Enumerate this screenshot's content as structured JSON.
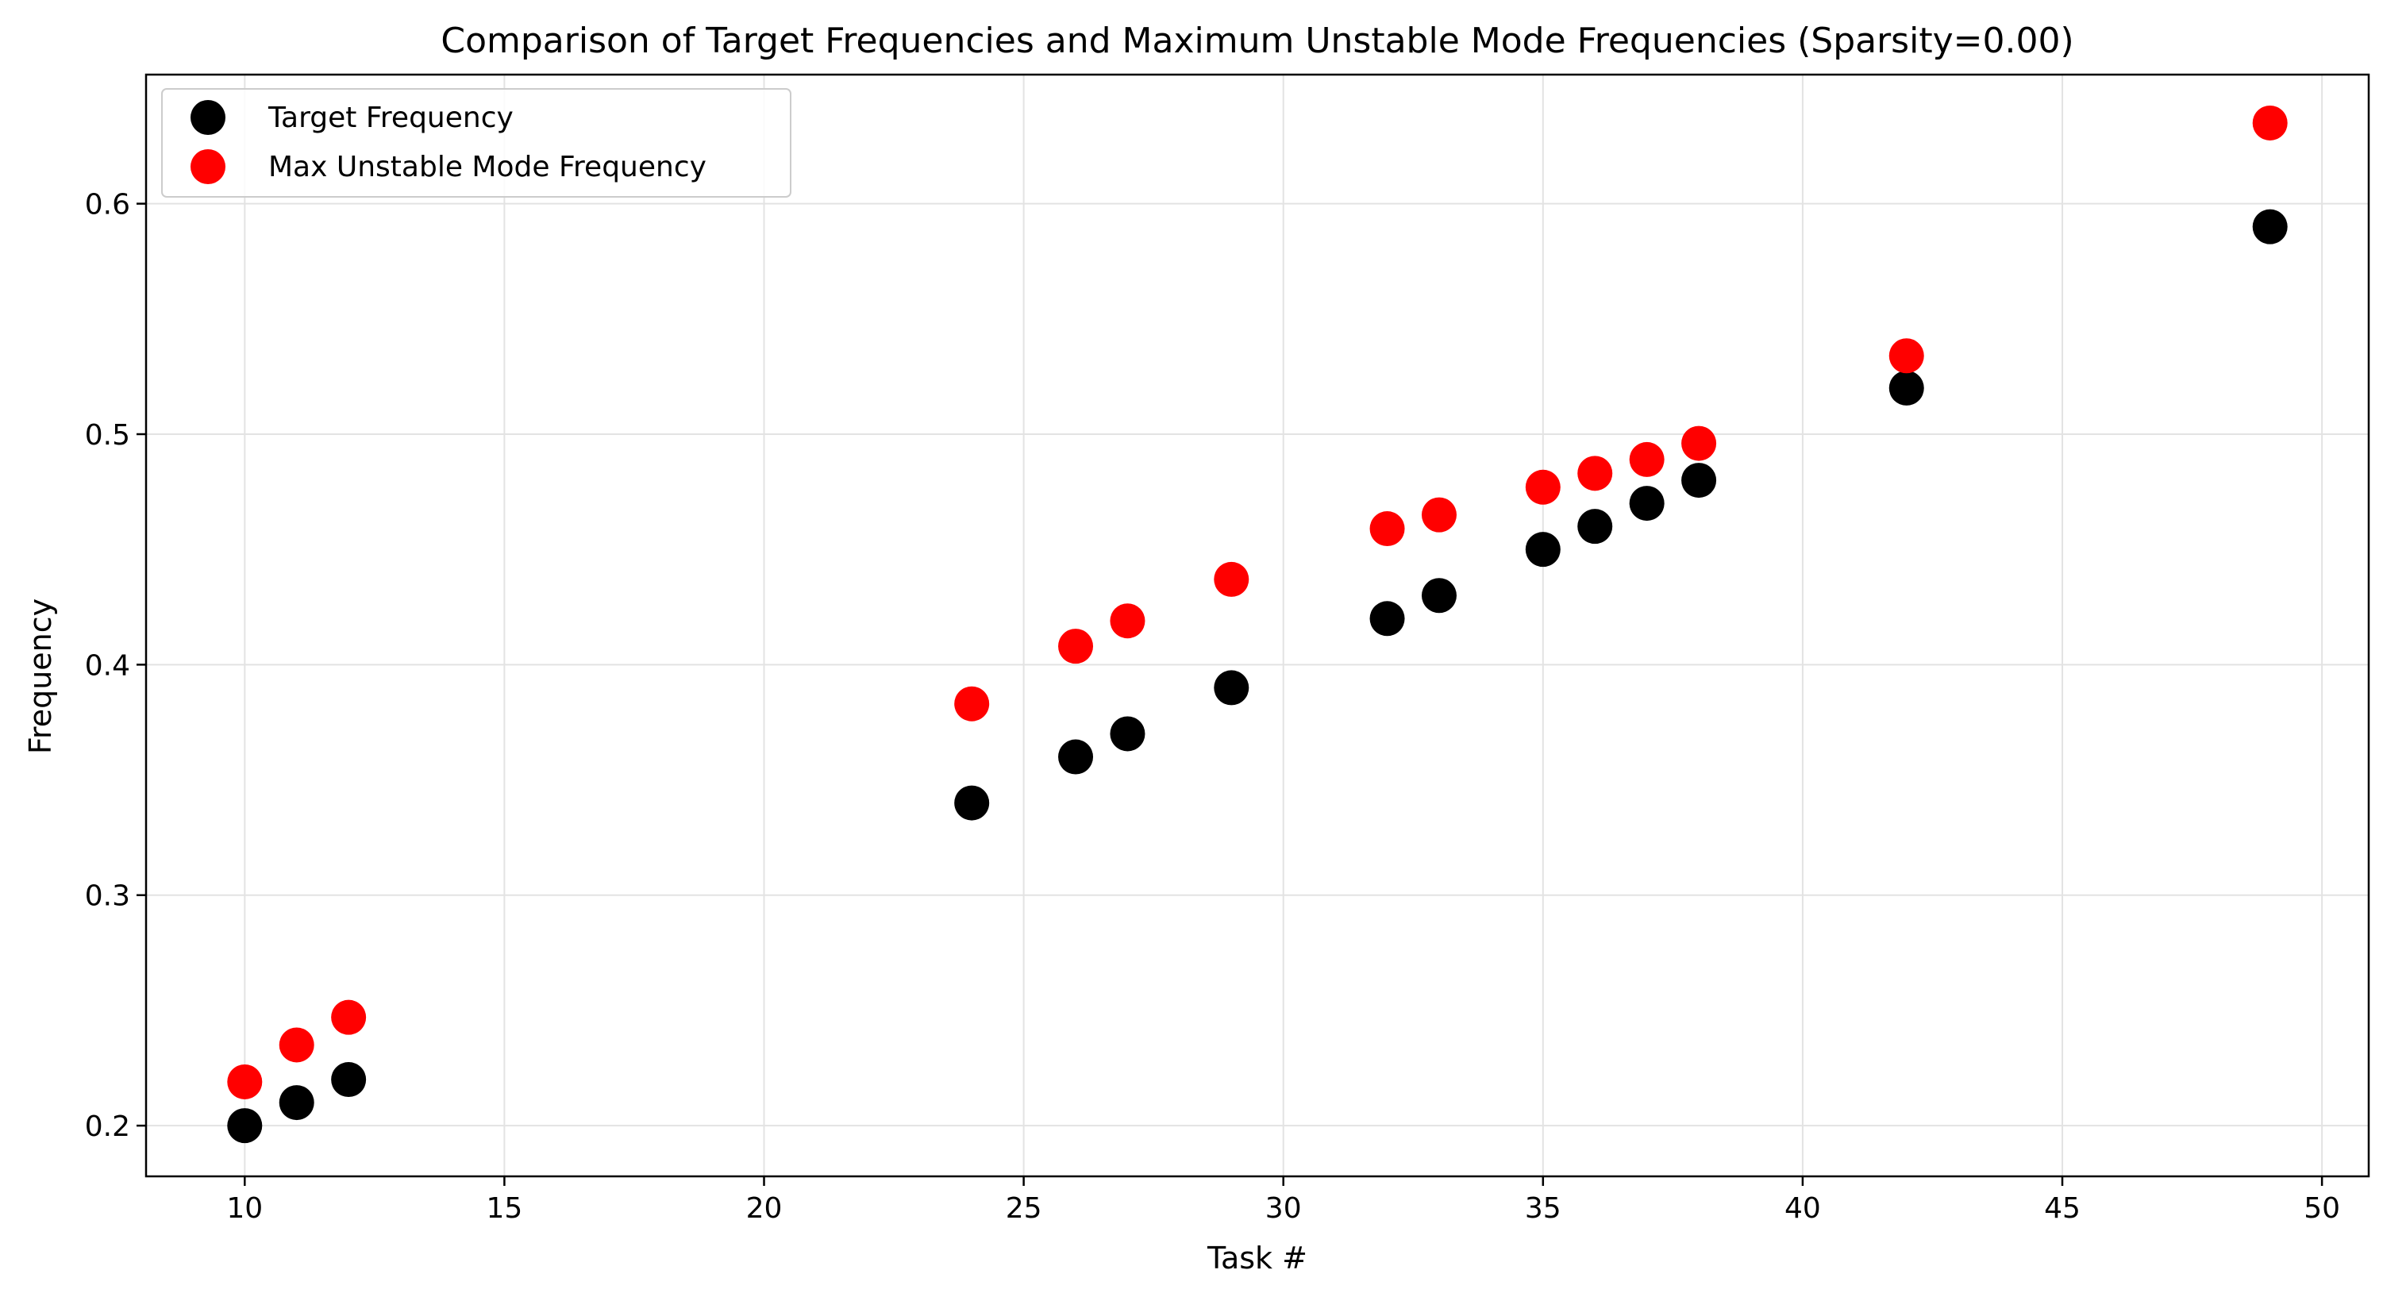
{
  "chart_data": {
    "type": "scatter",
    "title": "Comparison of Target Frequencies and Maximum Unstable Mode Frequencies (Sparsity=0.00)",
    "xlabel": "Task #",
    "ylabel": "Frequency",
    "xlim": [
      8.1,
      50.9
    ],
    "ylim": [
      0.178,
      0.656
    ],
    "xticks": [
      10,
      15,
      20,
      25,
      30,
      35,
      40,
      45,
      50
    ],
    "yticks": [
      0.2,
      0.3,
      0.4,
      0.5,
      0.6
    ],
    "xtick_labels": [
      "10",
      "15",
      "20",
      "25",
      "30",
      "35",
      "40",
      "45",
      "50"
    ],
    "ytick_labels": [
      "0.2",
      "0.3",
      "0.4",
      "0.5",
      "0.6"
    ],
    "grid": true,
    "legend_position": "top-left",
    "series": [
      {
        "name": "Target Frequency",
        "color": "#000000",
        "x": [
          10,
          11,
          12,
          24,
          26,
          27,
          29,
          32,
          33,
          35,
          36,
          37,
          38,
          42,
          49
        ],
        "y": [
          0.2,
          0.21,
          0.22,
          0.34,
          0.36,
          0.37,
          0.39,
          0.42,
          0.43,
          0.45,
          0.46,
          0.47,
          0.48,
          0.52,
          0.59
        ]
      },
      {
        "name": "Max Unstable Mode Frequency",
        "color": "#ff0000",
        "x": [
          10,
          11,
          12,
          24,
          26,
          27,
          29,
          32,
          33,
          35,
          36,
          37,
          38,
          42,
          49
        ],
        "y": [
          0.219,
          0.235,
          0.247,
          0.383,
          0.408,
          0.419,
          0.437,
          0.459,
          0.465,
          0.477,
          0.483,
          0.489,
          0.496,
          0.534,
          0.635
        ]
      }
    ]
  }
}
